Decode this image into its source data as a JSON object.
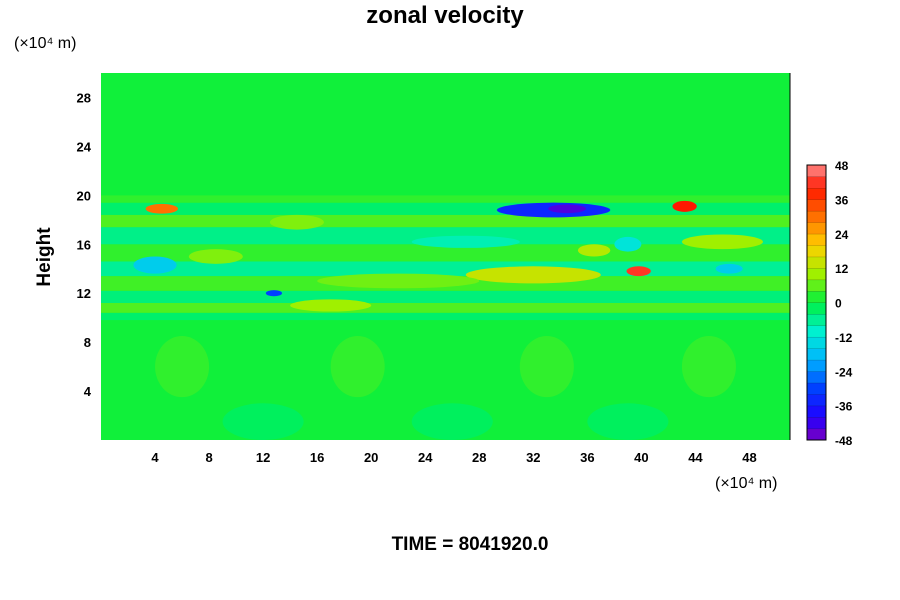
{
  "chart_data": {
    "type": "heatmap",
    "title": "zonal velocity",
    "xlabel": "",
    "ylabel": "Height",
    "x_unit": "(×10⁴ m)",
    "y_unit": "(×10⁴ m)",
    "xlim": [
      0,
      51
    ],
    "ylim": [
      0,
      30
    ],
    "x_ticks": [
      4,
      8,
      12,
      16,
      20,
      24,
      28,
      32,
      36,
      40,
      44,
      48
    ],
    "y_ticks": [
      4,
      8,
      12,
      16,
      20,
      24,
      28
    ],
    "colorbar": {
      "min": -48,
      "max": 48,
      "step": 4,
      "ticks": [
        48,
        36,
        24,
        12,
        0,
        -12,
        -24,
        -36,
        -48
      ]
    },
    "background_value": 2,
    "bands": [
      {
        "y_from": 0,
        "y_to": 9.8,
        "value": 1
      },
      {
        "y_from": 9.8,
        "y_to": 10.4,
        "value": -3
      },
      {
        "y_from": 10.4,
        "y_to": 11.2,
        "value": 5
      },
      {
        "y_from": 11.2,
        "y_to": 12.2,
        "value": -4
      },
      {
        "y_from": 12.2,
        "y_to": 13.4,
        "value": 4
      },
      {
        "y_from": 13.4,
        "y_to": 14.6,
        "value": -6
      },
      {
        "y_from": 14.6,
        "y_to": 16.0,
        "value": 3
      },
      {
        "y_from": 16.0,
        "y_to": 17.4,
        "value": -5
      },
      {
        "y_from": 17.4,
        "y_to": 18.4,
        "value": 5
      },
      {
        "y_from": 18.4,
        "y_to": 19.4,
        "value": -3
      },
      {
        "y_from": 19.4,
        "y_to": 20.0,
        "value": 3
      },
      {
        "y_from": 20.0,
        "y_to": 30,
        "value": 1
      }
    ],
    "features": [
      {
        "x": 4.5,
        "y": 18.9,
        "rx": 1.2,
        "ry": 0.4,
        "value": 30
      },
      {
        "x": 43.2,
        "y": 19.1,
        "rx": 0.9,
        "ry": 0.45,
        "value": 40
      },
      {
        "x": 39.8,
        "y": 13.8,
        "rx": 0.9,
        "ry": 0.4,
        "value": 42
      },
      {
        "x": 33.5,
        "y": 18.8,
        "rx": 4.2,
        "ry": 0.6,
        "value": -34
      },
      {
        "x": 34.5,
        "y": 18.9,
        "rx": 1.4,
        "ry": 0.35,
        "value": -44
      },
      {
        "x": 12.8,
        "y": 12.0,
        "rx": 0.6,
        "ry": 0.25,
        "value": -30
      },
      {
        "x": 4.0,
        "y": 14.3,
        "rx": 1.6,
        "ry": 0.7,
        "value": -16
      },
      {
        "x": 32.0,
        "y": 13.5,
        "rx": 5.0,
        "ry": 0.7,
        "value": 14
      },
      {
        "x": 22.0,
        "y": 13.0,
        "rx": 6.0,
        "ry": 0.6,
        "value": 7
      },
      {
        "x": 17.0,
        "y": 11.0,
        "rx": 3.0,
        "ry": 0.5,
        "value": 10
      },
      {
        "x": 46.0,
        "y": 16.2,
        "rx": 3.0,
        "ry": 0.6,
        "value": 10
      },
      {
        "x": 46.5,
        "y": 14.0,
        "rx": 1.0,
        "ry": 0.4,
        "value": -16
      },
      {
        "x": 36.5,
        "y": 15.5,
        "rx": 1.2,
        "ry": 0.5,
        "value": 12
      },
      {
        "x": 39.0,
        "y": 16.0,
        "rx": 1.0,
        "ry": 0.6,
        "value": -12
      },
      {
        "x": 14.5,
        "y": 17.8,
        "rx": 2.0,
        "ry": 0.6,
        "value": 8
      },
      {
        "x": 8.5,
        "y": 15.0,
        "rx": 2.0,
        "ry": 0.6,
        "value": 8
      },
      {
        "x": 27.0,
        "y": 16.2,
        "rx": 4.0,
        "ry": 0.5,
        "value": -8
      },
      {
        "x": 6.0,
        "y": 6.0,
        "rx": 2.0,
        "ry": 2.5,
        "value": 3
      },
      {
        "x": 19.0,
        "y": 6.0,
        "rx": 2.0,
        "ry": 2.5,
        "value": 3
      },
      {
        "x": 33.0,
        "y": 6.0,
        "rx": 2.0,
        "ry": 2.5,
        "value": 3
      },
      {
        "x": 45.0,
        "y": 6.0,
        "rx": 2.0,
        "ry": 2.5,
        "value": 3
      },
      {
        "x": 12.0,
        "y": 1.5,
        "rx": 3.0,
        "ry": 1.5,
        "value": -2
      },
      {
        "x": 26.0,
        "y": 1.5,
        "rx": 3.0,
        "ry": 1.5,
        "value": -2
      },
      {
        "x": 39.0,
        "y": 1.5,
        "rx": 3.0,
        "ry": 1.5,
        "value": -2
      }
    ],
    "footer": "TIME = 8041920.0"
  }
}
